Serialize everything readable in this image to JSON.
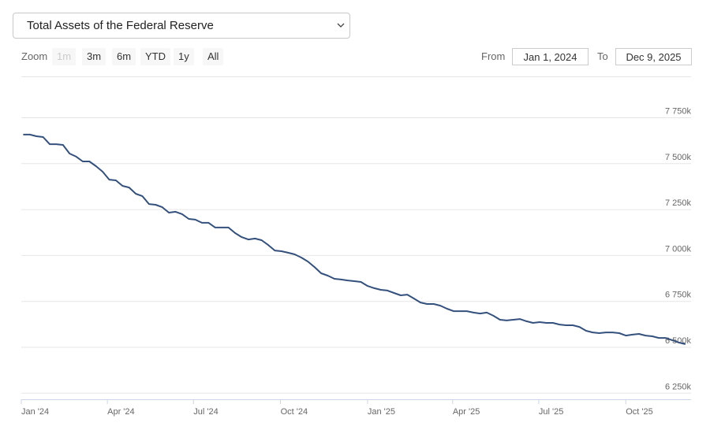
{
  "selector": {
    "label": "Total Assets of the Federal Reserve"
  },
  "zoom": {
    "label": "Zoom",
    "buttons": [
      "1m",
      "3m",
      "6m",
      "YTD",
      "1y",
      "All"
    ]
  },
  "range": {
    "from_label": "From",
    "from": "Jan 1, 2024",
    "to_label": "To",
    "to": "Dec 9, 2025"
  },
  "chart_data": {
    "type": "line",
    "color": "#34507c",
    "x": [
      "2024-01-03",
      "2024-01-10",
      "2024-01-17",
      "2024-01-24",
      "2024-01-31",
      "2024-02-07",
      "2024-02-14",
      "2024-02-21",
      "2024-02-28",
      "2024-03-06",
      "2024-03-13",
      "2024-03-20",
      "2024-03-27",
      "2024-04-03",
      "2024-04-10",
      "2024-04-17",
      "2024-04-24",
      "2024-05-01",
      "2024-05-08",
      "2024-05-15",
      "2024-05-22",
      "2024-05-29",
      "2024-06-05",
      "2024-06-12",
      "2024-06-19",
      "2024-06-26",
      "2024-07-03",
      "2024-07-10",
      "2024-07-17",
      "2024-07-24",
      "2024-07-31",
      "2024-08-07",
      "2024-08-14",
      "2024-08-21",
      "2024-08-28",
      "2024-09-04",
      "2024-09-11",
      "2024-09-18",
      "2024-09-25",
      "2024-10-02",
      "2024-10-09",
      "2024-10-16",
      "2024-10-23",
      "2024-10-30",
      "2024-11-06",
      "2024-11-13",
      "2024-11-20",
      "2024-11-27",
      "2024-12-04",
      "2024-12-11",
      "2024-12-18",
      "2024-12-25",
      "2025-01-01",
      "2025-01-08",
      "2025-01-15",
      "2025-01-22",
      "2025-01-29",
      "2025-02-05",
      "2025-02-12",
      "2025-02-19",
      "2025-02-26",
      "2025-03-05",
      "2025-03-12",
      "2025-03-19",
      "2025-03-26",
      "2025-04-02",
      "2025-04-09",
      "2025-04-16",
      "2025-04-23",
      "2025-04-30",
      "2025-05-07",
      "2025-05-14",
      "2025-05-21",
      "2025-05-28",
      "2025-06-04",
      "2025-06-11",
      "2025-06-18",
      "2025-06-25",
      "2025-07-02",
      "2025-07-09",
      "2025-07-16",
      "2025-07-23",
      "2025-07-30",
      "2025-08-06",
      "2025-08-13",
      "2025-08-20",
      "2025-08-27",
      "2025-09-03",
      "2025-09-10",
      "2025-09-17",
      "2025-09-24",
      "2025-10-01",
      "2025-10-08",
      "2025-10-15",
      "2025-10-22",
      "2025-10-29",
      "2025-11-05",
      "2025-11-12",
      "2025-11-19",
      "2025-11-26",
      "2025-12-03"
    ],
    "values": [
      7658000,
      7658000,
      7649000,
      7645000,
      7606000,
      7606000,
      7602000,
      7555000,
      7538000,
      7512000,
      7512000,
      7486000,
      7456000,
      7413000,
      7409000,
      7379000,
      7370000,
      7336000,
      7323000,
      7280000,
      7276000,
      7263000,
      7233000,
      7238000,
      7225000,
      7199000,
      7195000,
      7178000,
      7178000,
      7152000,
      7152000,
      7152000,
      7122000,
      7100000,
      7087000,
      7092000,
      7083000,
      7057000,
      7027000,
      7023000,
      7015000,
      7006000,
      6989000,
      6967000,
      6937000,
      6903000,
      6890000,
      6873000,
      6869000,
      6864000,
      6860000,
      6856000,
      6834000,
      6822000,
      6813000,
      6809000,
      6796000,
      6783000,
      6787000,
      6766000,
      6744000,
      6736000,
      6736000,
      6727000,
      6710000,
      6697000,
      6697000,
      6697000,
      6689000,
      6684000,
      6689000,
      6672000,
      6650000,
      6646000,
      6650000,
      6654000,
      6642000,
      6633000,
      6637000,
      6633000,
      6633000,
      6624000,
      6620000,
      6620000,
      6611000,
      6590000,
      6581000,
      6577000,
      6581000,
      6581000,
      6577000,
      6564000,
      6569000,
      6573000,
      6564000,
      6560000,
      6551000,
      6551000,
      6539000,
      6526000,
      6517000
    ],
    "xlim": [
      "2024-01-01",
      "2025-12-09"
    ],
    "xticks": [
      {
        "value": "2024-01-01",
        "label": "Jan '24"
      },
      {
        "value": "2024-04-01",
        "label": "Apr '24"
      },
      {
        "value": "2024-07-01",
        "label": "Jul '24"
      },
      {
        "value": "2024-10-01",
        "label": "Oct '24"
      },
      {
        "value": "2025-01-01",
        "label": "Jan '25"
      },
      {
        "value": "2025-04-01",
        "label": "Apr '25"
      },
      {
        "value": "2025-07-01",
        "label": "Jul '25"
      },
      {
        "value": "2025-10-01",
        "label": "Oct '25"
      }
    ],
    "ylim": [
      6217000,
      7975000
    ],
    "yticks": [
      {
        "value": 6250000,
        "label": "6 250k"
      },
      {
        "value": 6500000,
        "label": "6 500k"
      },
      {
        "value": 6750000,
        "label": "6 750k"
      },
      {
        "value": 7000000,
        "label": "7 000k"
      },
      {
        "value": 7250000,
        "label": "7 250k"
      },
      {
        "value": 7500000,
        "label": "7 500k"
      },
      {
        "value": 7750000,
        "label": "7 750k"
      }
    ],
    "grid": true
  }
}
